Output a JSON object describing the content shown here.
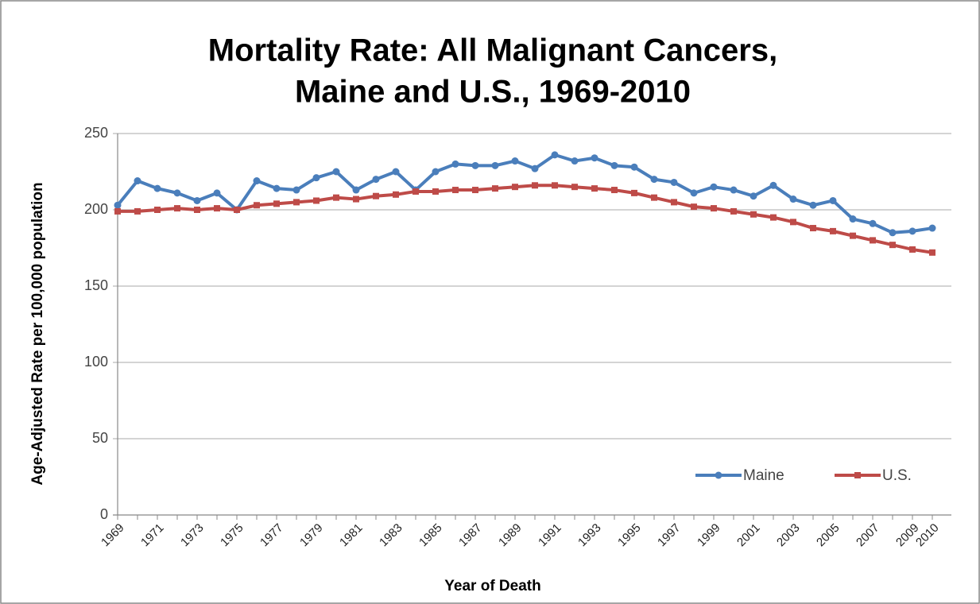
{
  "chart_data": {
    "type": "line",
    "title": [
      "Mortality Rate: All Malignant Cancers,",
      "Maine and U.S., 1969-2010"
    ],
    "y_label": "Age-Adjusted Rate per 100,000 population",
    "x_label": "Year of Death",
    "categories": [
      "1969",
      null,
      "1971",
      null,
      "1973",
      null,
      "1975",
      null,
      "1977",
      null,
      "1979",
      null,
      "1981",
      null,
      "1983",
      null,
      "1985",
      null,
      "1987",
      null,
      "1989",
      null,
      "1991",
      null,
      "1993",
      null,
      "1995",
      null,
      "1997",
      null,
      "1999",
      null,
      "2001",
      null,
      "2003",
      null,
      "2005",
      null,
      "2007",
      null,
      "2009",
      "2010"
    ],
    "series": [
      {
        "name": "Maine",
        "color": "#4a7ebb",
        "marker": "circle",
        "values": [
          203,
          219,
          214,
          211,
          206,
          211,
          200,
          219,
          214,
          213,
          221,
          225,
          213,
          220,
          225,
          213,
          225,
          230,
          229,
          229,
          232,
          227,
          236,
          232,
          234,
          229,
          228,
          220,
          218,
          211,
          215,
          213,
          209,
          216,
          207,
          203,
          206,
          194,
          191,
          185,
          186,
          188
        ]
      },
      {
        "name": "U.S.",
        "color": "#be4b48",
        "marker": "square",
        "values": [
          199,
          199,
          200,
          201,
          200,
          201,
          200,
          203,
          204,
          205,
          206,
          208,
          207,
          209,
          210,
          212,
          212,
          213,
          213,
          214,
          215,
          216,
          216,
          215,
          214,
          213,
          211,
          208,
          205,
          202,
          201,
          199,
          197,
          195,
          192,
          188,
          186,
          183,
          180,
          177,
          174,
          172
        ]
      }
    ],
    "ylim": [
      0,
      250
    ],
    "yticks": [
      0,
      50,
      100,
      150,
      200,
      250
    ],
    "grid": true,
    "legend": "lower right"
  }
}
